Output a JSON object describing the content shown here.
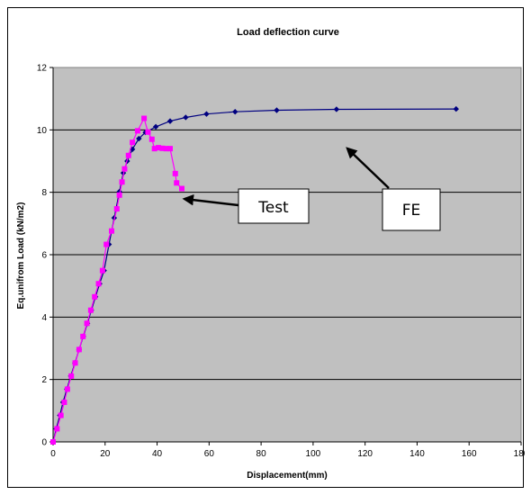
{
  "chart_data": {
    "type": "line",
    "title": "Load deflection curve",
    "xlabel": "Displacement(mm)",
    "ylabel": "Eq.unifrom Load (kN/m2)",
    "xlim": [
      0,
      180
    ],
    "ylim": [
      0,
      12
    ],
    "xticks": [
      0,
      20,
      40,
      60,
      80,
      100,
      120,
      140,
      160,
      180
    ],
    "yticks": [
      0,
      2,
      4,
      6,
      8,
      10,
      12
    ],
    "grid": "horizontal",
    "plot_background": "#C0C0C0",
    "series": [
      {
        "label": "FE",
        "color": "#000080",
        "marker": "diamond",
        "x": [
          0,
          1.2,
          2.6,
          3.8,
          5.3,
          6.8,
          8.4,
          10.0,
          11.6,
          13.2,
          14.7,
          16.3,
          17.9,
          19.6,
          21.5,
          23.5,
          25.5,
          27.0,
          28.5,
          30.5,
          33.0,
          35.5,
          39.5,
          45.0,
          51.0,
          59.0,
          70.0,
          86.0,
          109.0,
          155.0
        ],
        "y": [
          0,
          0.42,
          0.85,
          1.27,
          1.69,
          2.11,
          2.53,
          2.96,
          3.38,
          3.8,
          4.22,
          4.65,
          5.07,
          5.49,
          6.33,
          7.18,
          8.02,
          8.62,
          9.0,
          9.38,
          9.72,
          9.92,
          10.1,
          10.28,
          10.4,
          10.51,
          10.58,
          10.63,
          10.66,
          10.67
        ]
      },
      {
        "label": "Test",
        "color": "#FF00FF",
        "marker": "square",
        "x": [
          0,
          1.5,
          3.0,
          4.3,
          5.5,
          7.0,
          8.5,
          10.0,
          11.5,
          13.0,
          14.5,
          16.0,
          17.5,
          19.0,
          20.5,
          22.5,
          24.5,
          25.5,
          26.5,
          27.5,
          29.0,
          30.5,
          32.5,
          35.0,
          36.5,
          38.0,
          39.0,
          40.5,
          42.0,
          43.5,
          45.0,
          47.0,
          47.5,
          49.5
        ],
        "y": [
          0,
          0.42,
          0.85,
          1.27,
          1.69,
          2.11,
          2.53,
          2.96,
          3.38,
          3.8,
          4.22,
          4.65,
          5.07,
          5.49,
          6.33,
          6.76,
          7.47,
          7.91,
          8.33,
          8.75,
          9.18,
          9.6,
          9.97,
          10.37,
          9.93,
          9.7,
          9.4,
          9.43,
          9.41,
          9.4,
          9.4,
          8.6,
          8.3,
          8.12
        ]
      }
    ],
    "annotations": [
      {
        "text": "Test",
        "points_to": [
          42,
          8.1
        ]
      },
      {
        "text": "FE",
        "points_to": [
          112,
          9.65
        ]
      }
    ]
  }
}
